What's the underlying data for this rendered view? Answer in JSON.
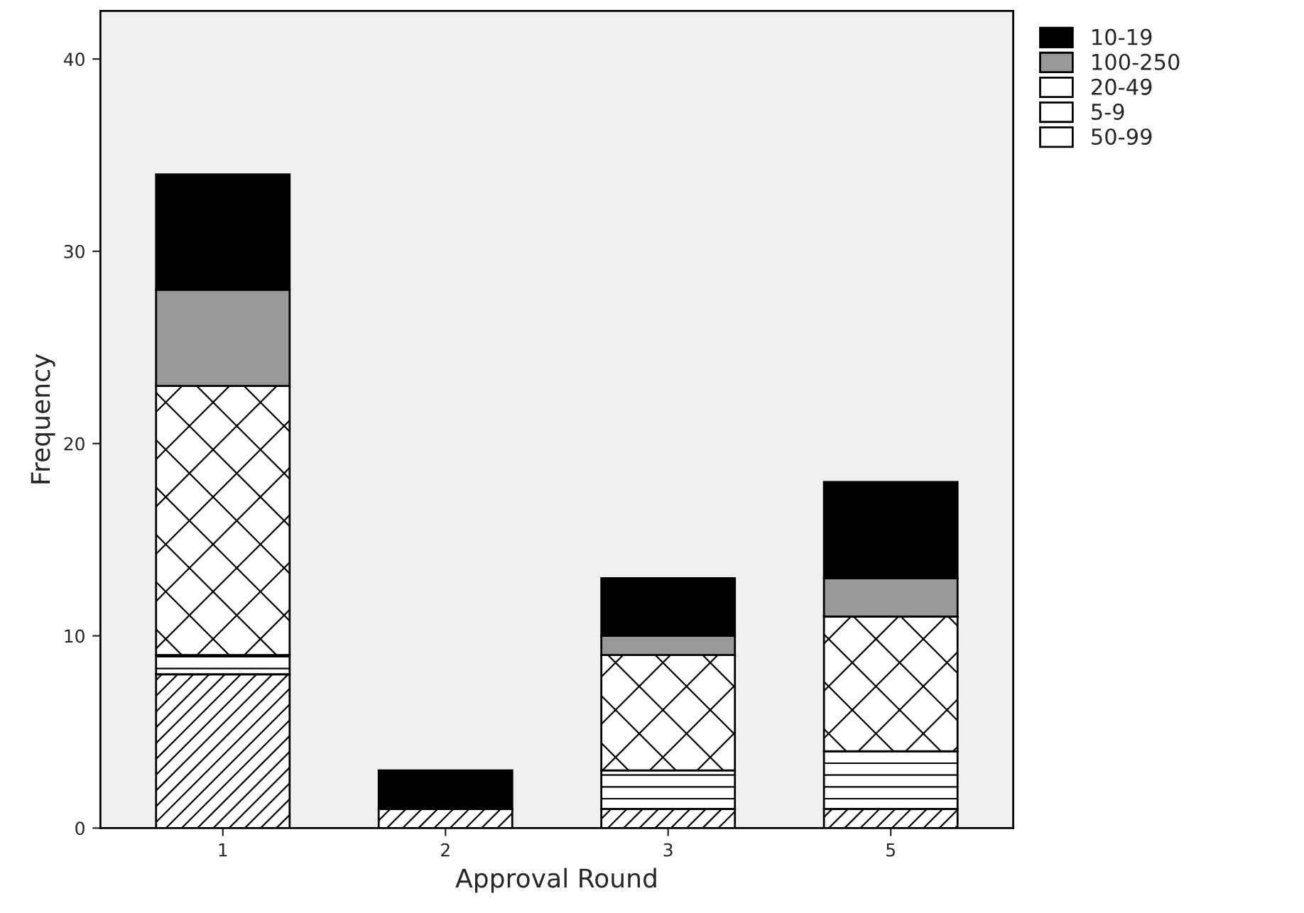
{
  "chart_data": {
    "type": "bar",
    "stacked": true,
    "xlabel": "Approval Round",
    "ylabel": "Frequency",
    "categories": [
      "1",
      "2",
      "3",
      "5"
    ],
    "series": [
      {
        "name": "50-99",
        "color": "#ffffff",
        "values": [
          8,
          1,
          1,
          1
        ]
      },
      {
        "name": "5-9",
        "color": "#ffffff",
        "values": [
          1,
          0,
          2,
          3
        ]
      },
      {
        "name": "20-49",
        "color": "#ffffff",
        "values": [
          14,
          0,
          6,
          7
        ]
      },
      {
        "name": "100-250",
        "color": "#999999",
        "values": [
          5,
          0,
          1,
          2
        ]
      },
      {
        "name": "10-19",
        "color": "#000000",
        "values": [
          6,
          2,
          3,
          5
        ]
      }
    ],
    "ylim": [
      0,
      42.5
    ],
    "yticks": [
      0,
      10,
      20,
      30,
      40
    ],
    "grid": false,
    "legend": "top right"
  }
}
